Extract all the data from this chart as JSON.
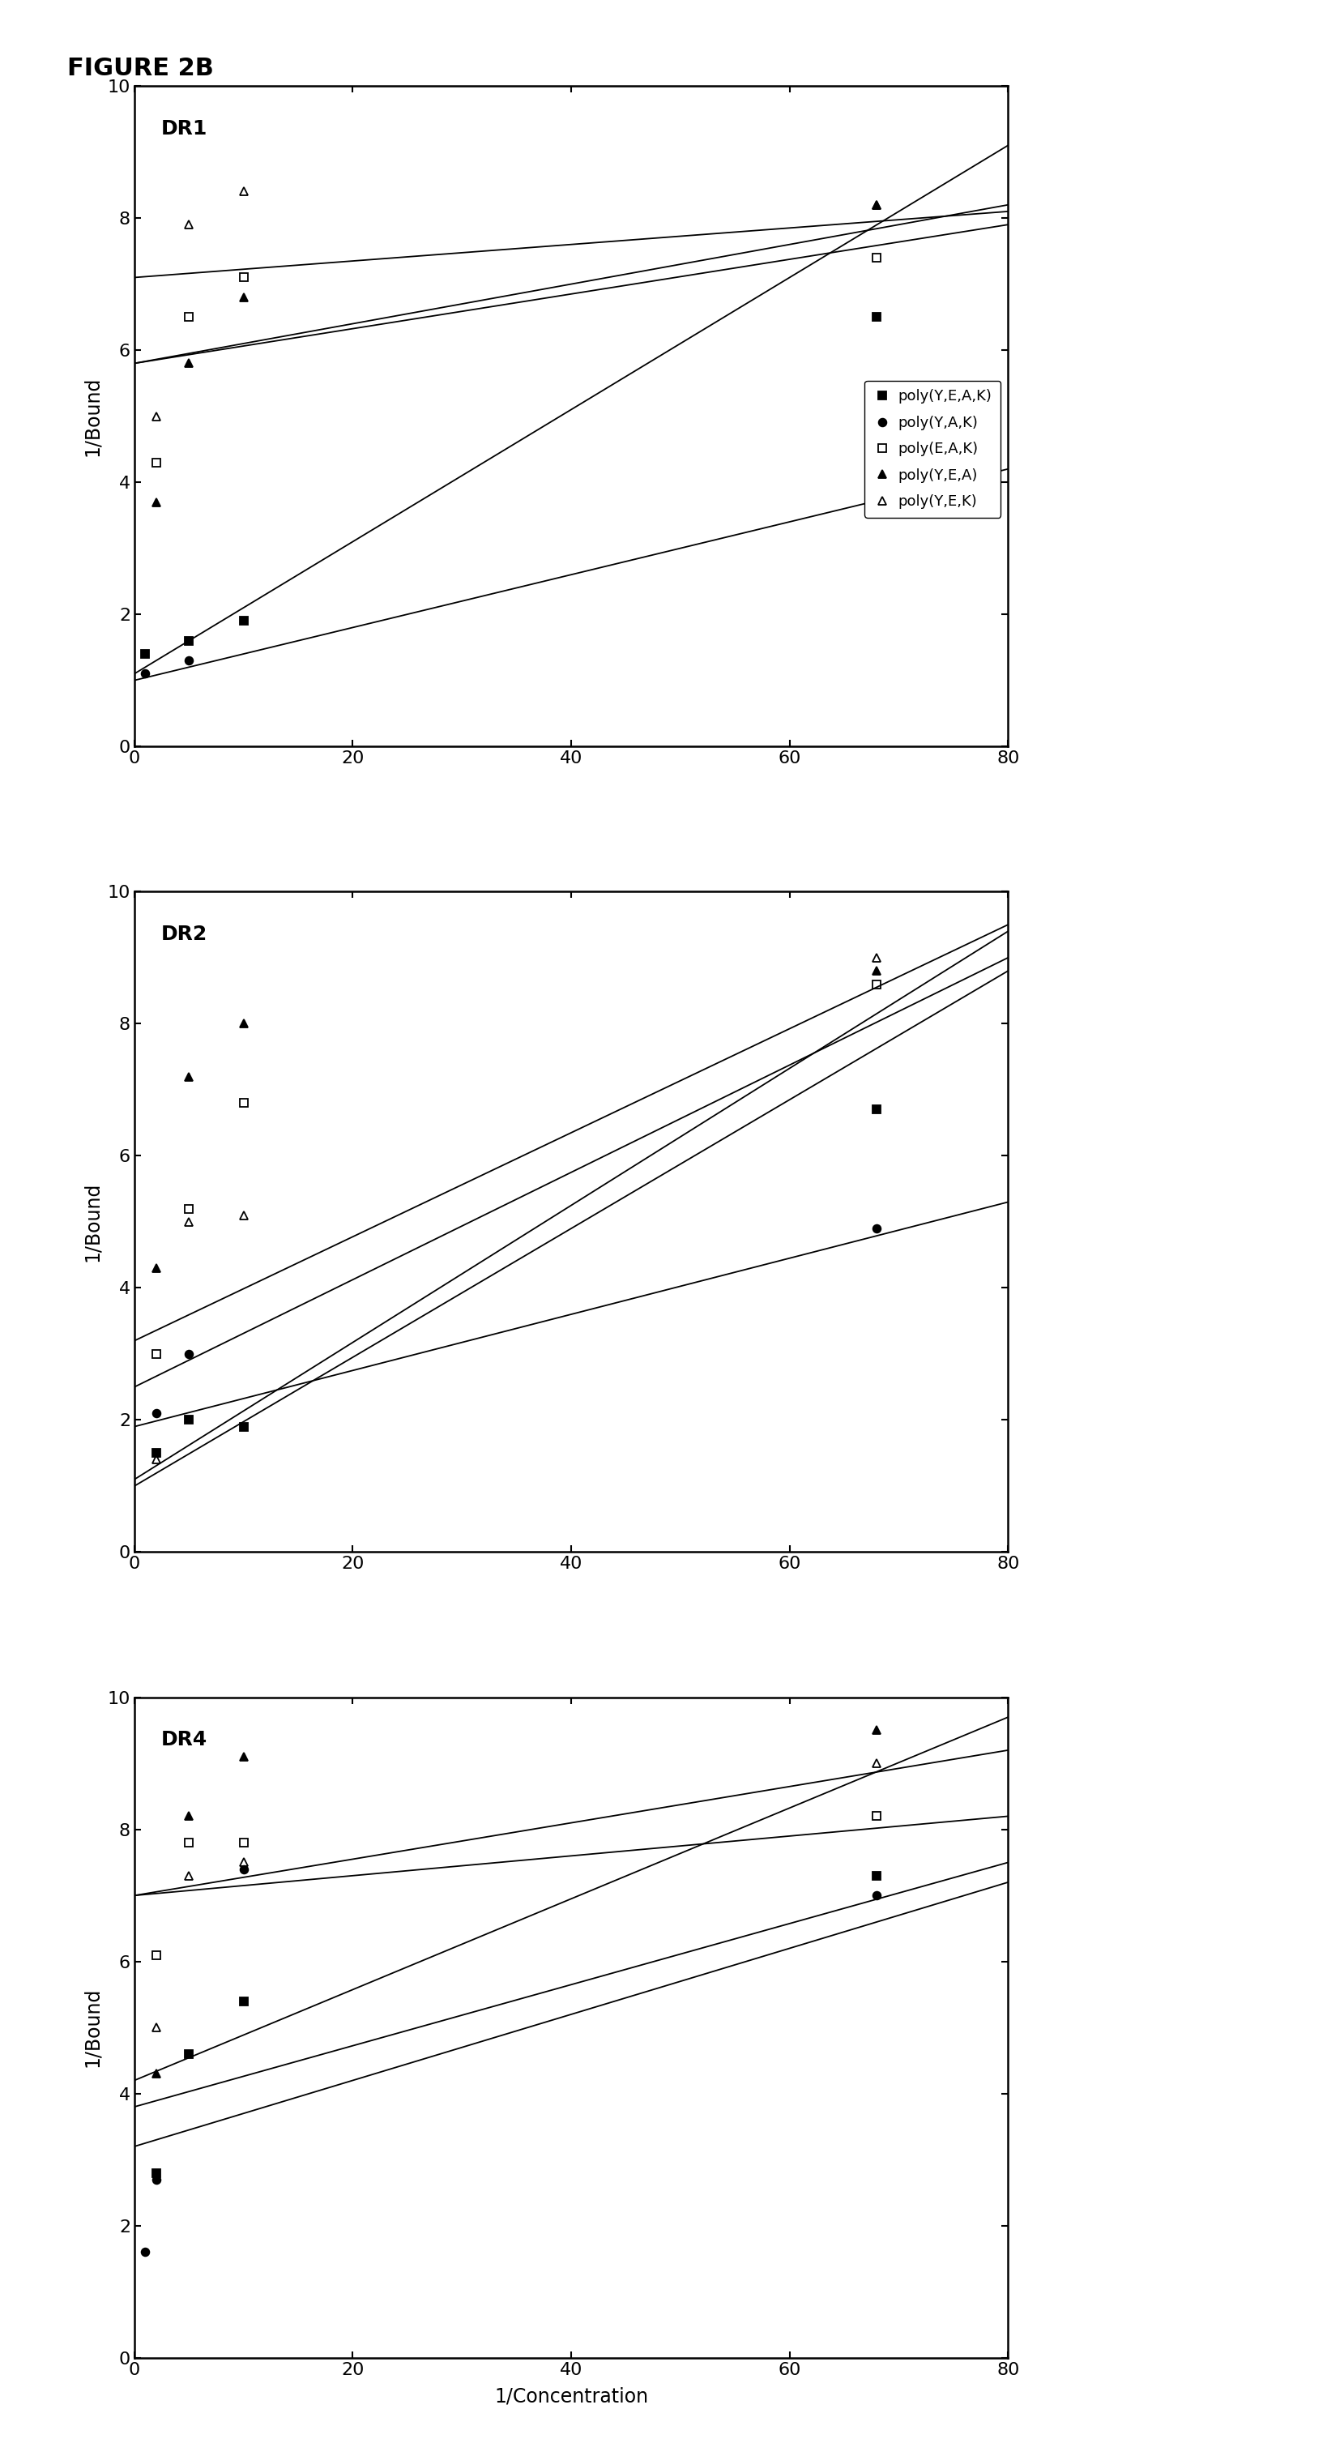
{
  "figure_title": "FIGURE 2B",
  "panels": [
    {
      "label": "DR1",
      "series": [
        {
          "name": "poly(Y,E,A,K)",
          "marker": "s",
          "filled": true,
          "points_x": [
            1,
            5,
            10,
            68
          ],
          "points_y": [
            1.4,
            1.6,
            1.9,
            6.5
          ],
          "line_x": [
            0,
            80
          ],
          "line_y": [
            1.1,
            9.1
          ]
        },
        {
          "name": "poly(Y,A,K)",
          "marker": "o",
          "filled": true,
          "points_x": [
            1,
            5,
            68
          ],
          "points_y": [
            1.1,
            1.3,
            3.8
          ],
          "line_x": [
            0,
            80
          ],
          "line_y": [
            1.0,
            4.2
          ]
        },
        {
          "name": "poly(E,A,K)",
          "marker": "s",
          "filled": false,
          "points_x": [
            2,
            5,
            10,
            68
          ],
          "points_y": [
            4.3,
            6.5,
            7.1,
            7.4
          ],
          "line_x": [
            0,
            80
          ],
          "line_y": [
            5.8,
            7.9
          ]
        },
        {
          "name": "poly(Y,E,A)",
          "marker": "^",
          "filled": true,
          "points_x": [
            2,
            5,
            10,
            68
          ],
          "points_y": [
            3.7,
            5.8,
            6.8,
            8.2
          ],
          "line_x": [
            0,
            80
          ],
          "line_y": [
            5.8,
            8.2
          ]
        },
        {
          "name": "poly(Y,E,K)",
          "marker": "^",
          "filled": false,
          "points_x": [
            2,
            5,
            10,
            68
          ],
          "points_y": [
            5.0,
            7.9,
            8.4,
            8.2
          ],
          "line_x": [
            0,
            80
          ],
          "line_y": [
            7.1,
            8.1
          ]
        }
      ],
      "show_legend": true
    },
    {
      "label": "DR2",
      "series": [
        {
          "name": "poly(Y,E,A,K)",
          "marker": "s",
          "filled": true,
          "points_x": [
            2,
            5,
            10,
            68
          ],
          "points_y": [
            1.5,
            2.0,
            1.9,
            6.7
          ],
          "line_x": [
            0,
            80
          ],
          "line_y": [
            1.0,
            8.8
          ]
        },
        {
          "name": "poly(Y,A,K)",
          "marker": "o",
          "filled": true,
          "points_x": [
            2,
            5,
            68
          ],
          "points_y": [
            2.1,
            3.0,
            4.9
          ],
          "line_x": [
            0,
            80
          ],
          "line_y": [
            1.9,
            5.3
          ]
        },
        {
          "name": "poly(E,A,K)",
          "marker": "s",
          "filled": false,
          "points_x": [
            2,
            5,
            10,
            68
          ],
          "points_y": [
            3.0,
            5.2,
            6.8,
            8.6
          ],
          "line_x": [
            0,
            80
          ],
          "line_y": [
            2.5,
            9.0
          ]
        },
        {
          "name": "poly(Y,E,A)",
          "marker": "^",
          "filled": true,
          "points_x": [
            2,
            5,
            10,
            68
          ],
          "points_y": [
            4.3,
            7.2,
            8.0,
            8.8
          ],
          "line_x": [
            0,
            80
          ],
          "line_y": [
            3.2,
            9.5
          ]
        },
        {
          "name": "poly(Y,E,K)",
          "marker": "^",
          "filled": false,
          "points_x": [
            2,
            5,
            10,
            68
          ],
          "points_y": [
            1.4,
            5.0,
            5.1,
            9.0
          ],
          "line_x": [
            0,
            80
          ],
          "line_y": [
            1.1,
            9.4
          ]
        }
      ],
      "show_legend": false
    },
    {
      "label": "DR4",
      "series": [
        {
          "name": "poly(Y,E,A,K)",
          "marker": "s",
          "filled": true,
          "points_x": [
            2,
            5,
            10,
            68
          ],
          "points_y": [
            2.8,
            4.6,
            5.4,
            7.3
          ],
          "line_x": [
            0,
            80
          ],
          "line_y": [
            3.8,
            7.5
          ]
        },
        {
          "name": "poly(Y,A,K)",
          "marker": "o",
          "filled": true,
          "points_x": [
            1,
            2,
            10,
            68
          ],
          "points_y": [
            1.6,
            2.7,
            7.4,
            7.0
          ],
          "line_x": [
            0,
            80
          ],
          "line_y": [
            3.2,
            7.2
          ]
        },
        {
          "name": "poly(E,A,K)",
          "marker": "s",
          "filled": false,
          "points_x": [
            2,
            5,
            10,
            68
          ],
          "points_y": [
            6.1,
            7.8,
            7.8,
            8.2
          ],
          "line_x": [
            0,
            80
          ],
          "line_y": [
            7.0,
            8.2
          ]
        },
        {
          "name": "poly(Y,E,A)",
          "marker": "^",
          "filled": true,
          "points_x": [
            2,
            5,
            10,
            68
          ],
          "points_y": [
            4.3,
            8.2,
            9.1,
            9.5
          ],
          "line_x": [
            0,
            80
          ],
          "line_y": [
            4.2,
            9.7
          ]
        },
        {
          "name": "poly(Y,E,K)",
          "marker": "^",
          "filled": false,
          "points_x": [
            2,
            5,
            10,
            68
          ],
          "points_y": [
            5.0,
            7.3,
            7.5,
            9.0
          ],
          "line_x": [
            0,
            80
          ],
          "line_y": [
            7.0,
            9.2
          ]
        }
      ],
      "show_legend": false
    }
  ],
  "legend_labels": [
    "poly(Y,E,A,K)",
    "poly(Y,A,K)",
    "poly(E,A,K)",
    "poly(Y,E,A)",
    "poly(Y,E,K)"
  ],
  "legend_markers": [
    "s",
    "o",
    "s",
    "^",
    "^"
  ],
  "legend_filled": [
    true,
    true,
    false,
    true,
    false
  ],
  "xlim": [
    0,
    80
  ],
  "ylim": [
    0,
    10
  ],
  "xticks": [
    0,
    20,
    40,
    60,
    80
  ],
  "yticks": [
    0,
    2,
    4,
    6,
    8,
    10
  ],
  "xlabel": "1/Concentration",
  "ylabel": "1/Bound",
  "background_color": "#ffffff",
  "marker_size": 7,
  "line_width": 1.3
}
